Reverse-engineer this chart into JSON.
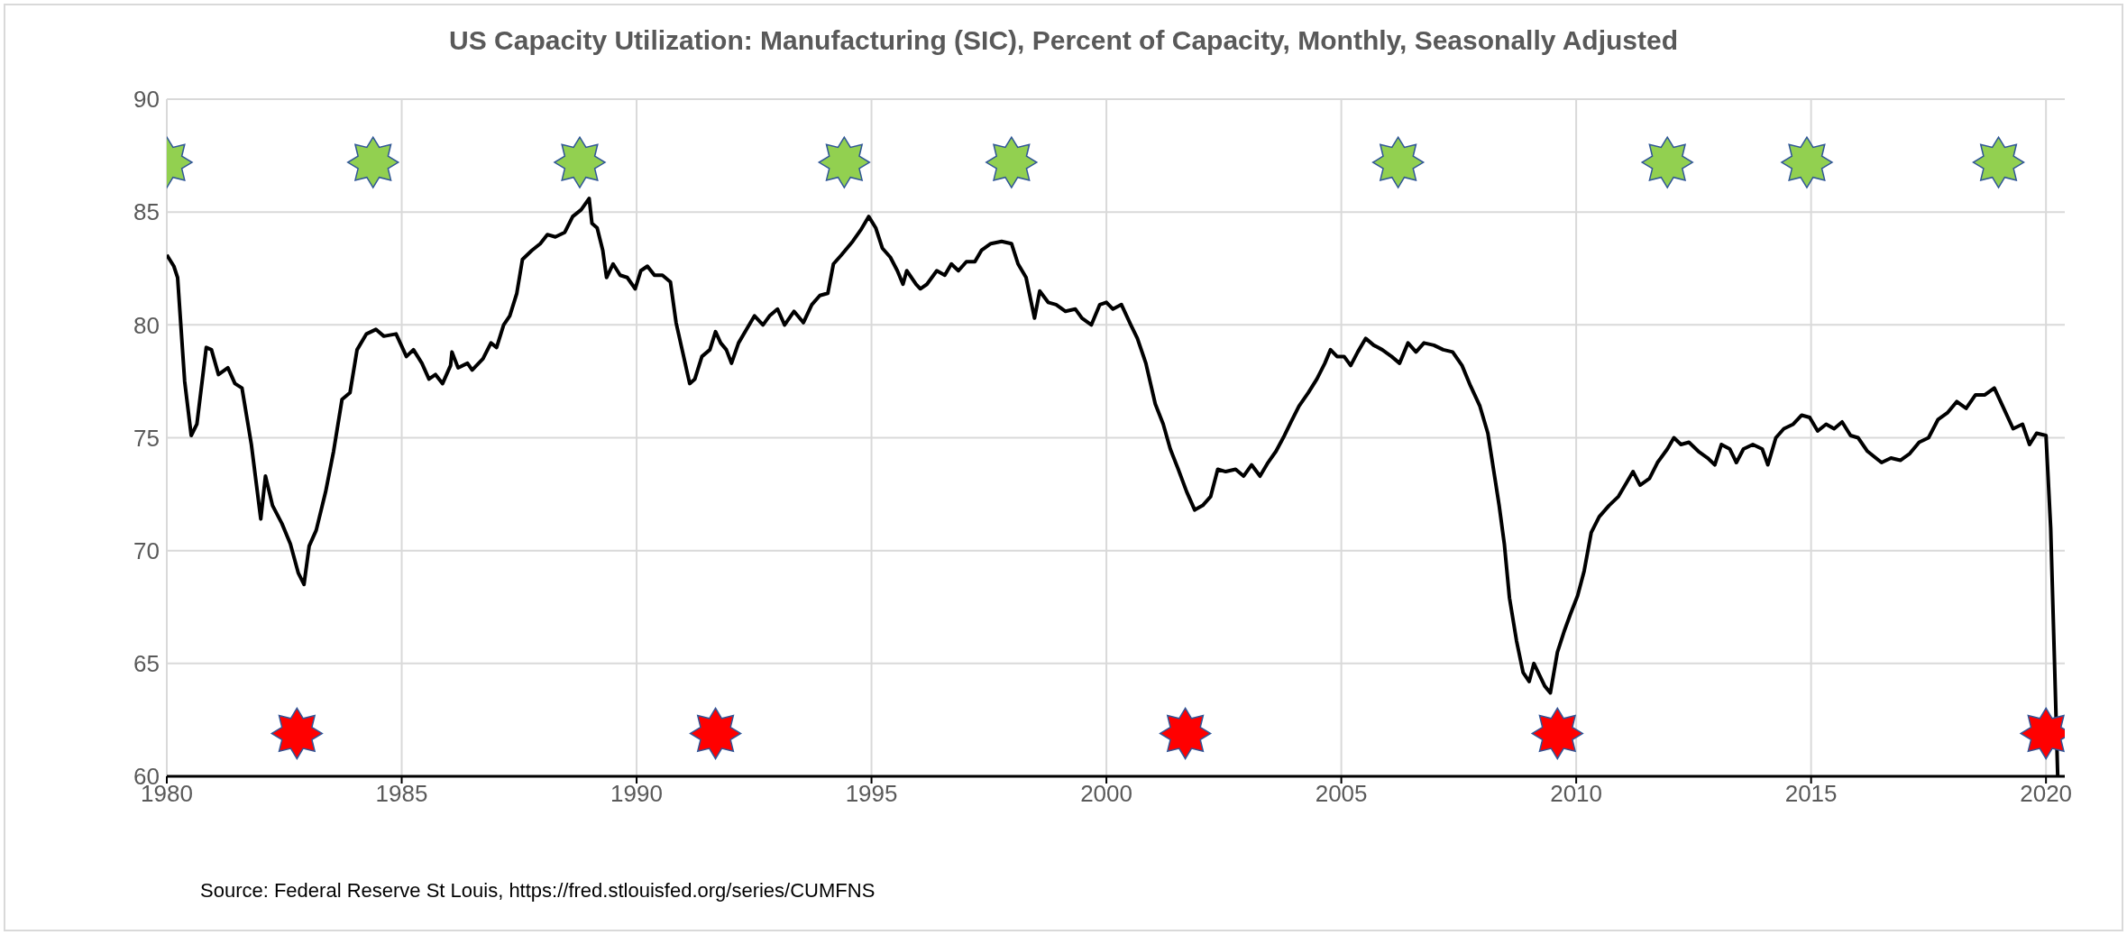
{
  "chart_data": {
    "type": "line",
    "title": "US Capacity Utilization: Manufacturing (SIC), Percent of Capacity, Monthly, Seasonally Adjusted",
    "annotations": [
      "Source: Federal Reserve St Louis, https://fred.stlouisfed.org/series/CUMFNS"
    ],
    "xlim": [
      1980,
      2020.4
    ],
    "xticks": [
      1980,
      1985,
      1990,
      1995,
      2000,
      2005,
      2010,
      2015,
      2020
    ],
    "ylim": [
      60,
      90
    ],
    "yticks": [
      60,
      65,
      70,
      75,
      80,
      85,
      90
    ],
    "grid": true,
    "line_style": "solid",
    "series": [
      {
        "color": "#000000",
        "x": [
          1980.0,
          1980.15,
          1980.23,
          1980.38,
          1980.52,
          1980.64,
          1980.84,
          1980.95,
          1981.1,
          1981.3,
          1981.45,
          1981.6,
          1981.8,
          1982.0,
          1982.1,
          1982.25,
          1982.45,
          1982.63,
          1982.8,
          1982.92,
          1983.03,
          1983.18,
          1983.38,
          1983.55,
          1983.73,
          1983.9,
          1984.05,
          1984.25,
          1984.45,
          1984.62,
          1984.88,
          1985.1,
          1985.25,
          1985.43,
          1985.58,
          1985.72,
          1985.87,
          1986.04,
          1986.07,
          1986.2,
          1986.4,
          1986.5,
          1986.73,
          1986.9,
          1987.02,
          1987.17,
          1987.3,
          1987.45,
          1987.57,
          1987.77,
          1987.95,
          1988.1,
          1988.27,
          1988.47,
          1988.64,
          1988.82,
          1988.99,
          1989.05,
          1989.16,
          1989.28,
          1989.36,
          1989.5,
          1989.65,
          1989.8,
          1989.97,
          1990.09,
          1990.23,
          1990.38,
          1990.55,
          1990.72,
          1990.84,
          1990.98,
          1991.13,
          1991.24,
          1991.39,
          1991.56,
          1991.68,
          1991.79,
          1991.91,
          1992.02,
          1992.17,
          1992.34,
          1992.51,
          1992.69,
          1992.83,
          1993.0,
          1993.15,
          1993.35,
          1993.55,
          1993.73,
          1993.9,
          1994.07,
          1994.19,
          1994.36,
          1994.6,
          1994.77,
          1994.94,
          1995.09,
          1995.23,
          1995.4,
          1995.55,
          1995.67,
          1995.75,
          1995.95,
          1996.04,
          1996.18,
          1996.39,
          1996.56,
          1996.7,
          1996.85,
          1997.02,
          1997.2,
          1997.34,
          1997.54,
          1997.77,
          1997.98,
          1998.12,
          1998.29,
          1998.47,
          1998.58,
          1998.76,
          1998.93,
          1999.13,
          1999.34,
          1999.48,
          1999.68,
          1999.86,
          2000.0,
          2000.14,
          2000.32,
          2000.52,
          2000.66,
          2000.84,
          2001.04,
          2001.21,
          2001.36,
          2001.53,
          2001.71,
          2001.88,
          2002.05,
          2002.22,
          2002.37,
          2002.54,
          2002.75,
          2002.92,
          2003.09,
          2003.27,
          2003.44,
          2003.61,
          2003.79,
          2003.93,
          2004.1,
          2004.3,
          2004.48,
          2004.65,
          2004.77,
          2004.91,
          2005.06,
          2005.2,
          2005.35,
          2005.52,
          2005.69,
          2005.87,
          2006.07,
          2006.24,
          2006.42,
          2006.59,
          2006.76,
          2006.97,
          2007.17,
          2007.37,
          2007.57,
          2007.75,
          2007.95,
          2008.12,
          2008.24,
          2008.36,
          2008.47,
          2008.58,
          2008.73,
          2008.87,
          2009.0,
          2009.1,
          2009.33,
          2009.45,
          2009.6,
          2009.74,
          2009.88,
          2010.03,
          2010.17,
          2010.32,
          2010.49,
          2010.7,
          2010.9,
          2011.07,
          2011.21,
          2011.36,
          2011.56,
          2011.73,
          2011.94,
          2012.08,
          2012.23,
          2012.4,
          2012.6,
          2012.8,
          2012.95,
          2013.09,
          2013.27,
          2013.41,
          2013.56,
          2013.76,
          2013.96,
          2014.08,
          2014.25,
          2014.42,
          2014.62,
          2014.8,
          2014.97,
          2015.14,
          2015.32,
          2015.49,
          2015.66,
          2015.84,
          2016.0,
          2016.2,
          2016.5,
          2016.7,
          2016.9,
          2017.1,
          2017.3,
          2017.5,
          2017.7,
          2017.9,
          2018.1,
          2018.3,
          2018.5,
          2018.7,
          2018.9,
          2019.1,
          2019.3,
          2019.5,
          2019.65,
          2019.8,
          2020.0,
          2020.1,
          2020.25
        ],
        "values": [
          83.1,
          82.6,
          82.1,
          77.5,
          75.1,
          75.6,
          79.0,
          78.9,
          77.8,
          78.1,
          77.4,
          77.2,
          74.7,
          71.4,
          73.3,
          72.0,
          71.2,
          70.3,
          69.0,
          68.5,
          70.2,
          70.9,
          72.6,
          74.4,
          76.7,
          77.0,
          78.9,
          79.6,
          79.8,
          79.5,
          79.6,
          78.6,
          78.9,
          78.3,
          77.6,
          77.8,
          77.4,
          78.2,
          78.8,
          78.1,
          78.3,
          78.0,
          78.5,
          79.2,
          79.0,
          80.0,
          80.4,
          81.4,
          82.9,
          83.3,
          83.6,
          84.0,
          83.9,
          84.1,
          84.8,
          85.1,
          85.6,
          84.5,
          84.3,
          83.3,
          82.1,
          82.7,
          82.2,
          82.1,
          81.6,
          82.4,
          82.6,
          82.2,
          82.2,
          81.9,
          80.1,
          78.8,
          77.4,
          77.6,
          78.6,
          78.9,
          79.7,
          79.2,
          78.9,
          78.3,
          79.2,
          79.8,
          80.4,
          80.0,
          80.4,
          80.7,
          80.0,
          80.6,
          80.1,
          80.9,
          81.3,
          81.4,
          82.7,
          83.1,
          83.7,
          84.2,
          84.8,
          84.3,
          83.4,
          83.0,
          82.4,
          81.8,
          82.4,
          81.8,
          81.6,
          81.8,
          82.4,
          82.2,
          82.7,
          82.4,
          82.8,
          82.8,
          83.3,
          83.6,
          83.7,
          83.6,
          82.7,
          82.1,
          80.3,
          81.5,
          81.0,
          80.9,
          80.6,
          80.7,
          80.3,
          80.0,
          80.9,
          81.0,
          80.7,
          80.9,
          80.0,
          79.4,
          78.3,
          76.5,
          75.6,
          74.5,
          73.6,
          72.6,
          71.8,
          72.0,
          72.4,
          73.6,
          73.5,
          73.6,
          73.3,
          73.8,
          73.3,
          73.9,
          74.4,
          75.1,
          75.7,
          76.4,
          77.0,
          77.6,
          78.3,
          78.9,
          78.6,
          78.6,
          78.2,
          78.8,
          79.4,
          79.1,
          78.9,
          78.6,
          78.3,
          79.2,
          78.8,
          79.2,
          79.1,
          78.9,
          78.8,
          78.2,
          77.3,
          76.4,
          75.2,
          73.6,
          72.0,
          70.3,
          67.9,
          66.0,
          64.6,
          64.2,
          65.0,
          64.0,
          63.7,
          65.5,
          66.4,
          67.2,
          68.0,
          69.1,
          70.8,
          71.5,
          72.0,
          72.4,
          73.0,
          73.5,
          72.9,
          73.2,
          73.9,
          74.5,
          75.0,
          74.7,
          74.8,
          74.4,
          74.1,
          73.8,
          74.7,
          74.5,
          73.9,
          74.5,
          74.7,
          74.5,
          73.8,
          75.0,
          75.4,
          75.6,
          76.0,
          75.9,
          75.3,
          75.6,
          75.4,
          75.7,
          75.1,
          75.0,
          74.4,
          73.9,
          74.1,
          74.0,
          74.3,
          74.8,
          75.0,
          75.8,
          76.1,
          76.6,
          76.3,
          76.9,
          76.9,
          77.2,
          76.3,
          75.4,
          75.6,
          74.7,
          75.2,
          75.1,
          71.0,
          60.0
        ]
      },
      {
        "type": "scatter",
        "color": "#92d050",
        "marker": "star",
        "x": [
          1980.0,
          1984.39,
          1988.79,
          1994.42,
          1997.98,
          2006.21,
          2011.94,
          2014.91,
          2018.99
        ],
        "values": [
          87.2,
          87.2,
          87.2,
          87.2,
          87.2,
          87.2,
          87.2,
          87.2,
          87.2
        ]
      },
      {
        "type": "scatter",
        "color": "#ff0000",
        "marker": "star",
        "x": [
          1982.77,
          1991.68,
          2001.68,
          2009.6,
          2020.0
        ],
        "values": [
          61.9,
          61.9,
          61.9,
          61.9,
          61.9
        ]
      }
    ]
  }
}
